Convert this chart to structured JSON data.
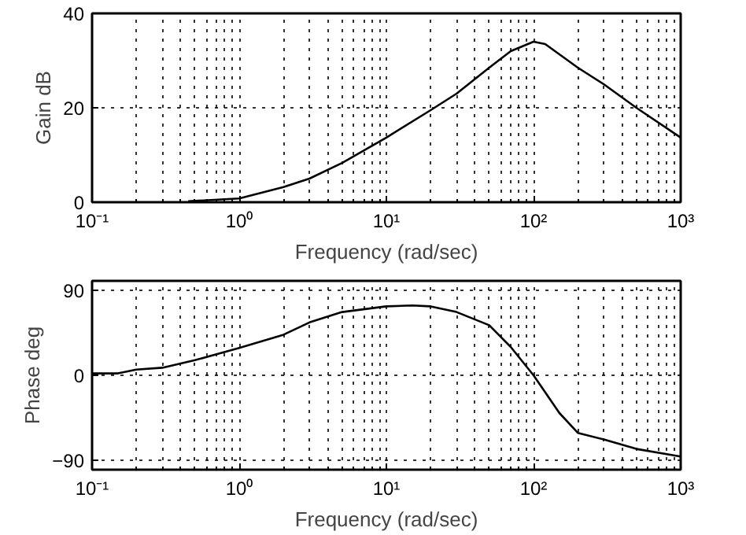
{
  "chart_data": [
    {
      "type": "line",
      "ylabel": "Gain dB",
      "xlabel": "Frequency (rad/sec)",
      "log": "x",
      "grid": true,
      "x": [
        0.45,
        1,
        2,
        3,
        5,
        10,
        20,
        30,
        50,
        70,
        100,
        120,
        200,
        300,
        500,
        1000
      ],
      "series": [
        {
          "color": "#000000",
          "values": [
            0.2,
            0.8,
            3.2,
            5,
            8.3,
            13.7,
            19.5,
            23,
            28.5,
            32,
            34,
            33.5,
            28.5,
            25,
            20,
            13.7
          ]
        }
      ],
      "xlim": [
        0.1,
        1000
      ],
      "ylim": [
        0,
        40
      ],
      "xticks": [
        {
          "value": 0.1,
          "label": "10⁻¹"
        },
        {
          "value": 1,
          "label": "10⁰"
        },
        {
          "value": 10,
          "label": "10¹"
        },
        {
          "value": 100,
          "label": "10²"
        },
        {
          "value": 1000,
          "label": "10³"
        }
      ],
      "yticks": [
        0,
        20,
        40
      ]
    },
    {
      "type": "line",
      "ylabel": "Phase deg",
      "xlabel": "Frequency (rad/sec)",
      "log": "x",
      "grid": true,
      "x": [
        0.1,
        0.15,
        0.2,
        0.3,
        0.5,
        1,
        2,
        3,
        5,
        10,
        15,
        20,
        30,
        50,
        70,
        100,
        150,
        200,
        300,
        500,
        1000
      ],
      "series": [
        {
          "color": "#000000",
          "values": [
            2,
            2,
            6,
            8,
            16,
            29,
            43,
            56,
            67,
            73,
            74,
            73,
            67,
            53,
            30,
            0,
            -40,
            -61,
            -68,
            -78,
            -86
          ]
        }
      ],
      "xlim": [
        0.1,
        1000
      ],
      "ylim": [
        -100,
        100
      ],
      "xticks": [
        {
          "value": 0.1,
          "label": "10⁻¹"
        },
        {
          "value": 1,
          "label": "10⁰"
        },
        {
          "value": 10,
          "label": "10¹"
        },
        {
          "value": 100,
          "label": "10²"
        },
        {
          "value": 1000,
          "label": "10³"
        }
      ],
      "yticks": [
        -90,
        0,
        90
      ]
    }
  ]
}
